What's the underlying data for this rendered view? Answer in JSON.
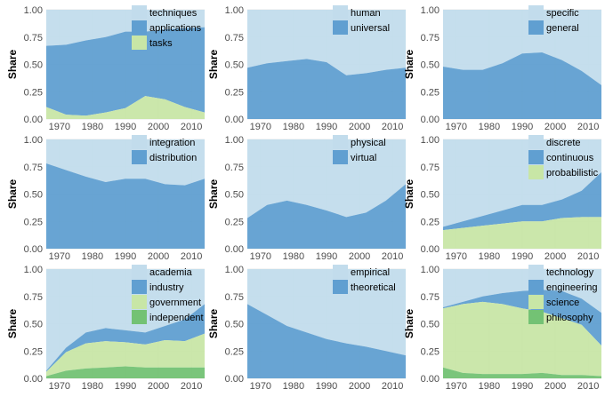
{
  "colors": {
    "light_blue": "#c2dcec",
    "mid_blue": "#609fd1",
    "light_green": "#c8e6a6",
    "green": "#73c274",
    "panel_bg": "#ffffff",
    "grid": "#e8e8e8",
    "axis_text": "#4d4d4d"
  },
  "chart_data": [
    {
      "type": "area",
      "stacked": true,
      "ylabel": "Share",
      "xlim": [
        1966,
        2014
      ],
      "ylim": [
        0,
        1
      ],
      "xticks": [
        "1970",
        "1980",
        "1990",
        "2000",
        "2010"
      ],
      "yticks": [
        "0.00",
        "0.25",
        "0.50",
        "0.75",
        "1.00"
      ],
      "grid": true,
      "legend_position": "top-right",
      "x": [
        1966,
        1972,
        1978,
        1984,
        1990,
        1996,
        2002,
        2008,
        2014
      ],
      "series": [
        {
          "name": "techniques",
          "color": "light_blue",
          "values": [
            0.33,
            0.32,
            0.28,
            0.25,
            0.2,
            0.2,
            0.18,
            0.17,
            0.16
          ]
        },
        {
          "name": "applications",
          "color": "mid_blue",
          "values": [
            0.56,
            0.64,
            0.69,
            0.69,
            0.7,
            0.59,
            0.64,
            0.72,
            0.78
          ]
        },
        {
          "name": "tasks",
          "color": "light_green",
          "values": [
            0.11,
            0.04,
            0.03,
            0.06,
            0.1,
            0.21,
            0.18,
            0.11,
            0.06
          ]
        }
      ]
    },
    {
      "type": "area",
      "stacked": true,
      "ylabel": "Share",
      "xlim": [
        1966,
        2014
      ],
      "ylim": [
        0,
        1
      ],
      "xticks": [
        "1970",
        "1980",
        "1990",
        "2000",
        "2010"
      ],
      "yticks": [
        "0.00",
        "0.25",
        "0.50",
        "0.75",
        "1.00"
      ],
      "grid": true,
      "legend_position": "top-right",
      "x": [
        1966,
        1972,
        1978,
        1984,
        1990,
        1996,
        2002,
        2008,
        2014
      ],
      "series": [
        {
          "name": "human",
          "color": "light_blue",
          "values": [
            0.53,
            0.49,
            0.47,
            0.45,
            0.48,
            0.6,
            0.58,
            0.55,
            0.53
          ]
        },
        {
          "name": "universal",
          "color": "mid_blue",
          "values": [
            0.47,
            0.51,
            0.53,
            0.55,
            0.52,
            0.4,
            0.42,
            0.45,
            0.47
          ]
        }
      ]
    },
    {
      "type": "area",
      "stacked": true,
      "ylabel": "Share",
      "xlim": [
        1966,
        2014
      ],
      "ylim": [
        0,
        1
      ],
      "xticks": [
        "1970",
        "1980",
        "1990",
        "2000",
        "2010"
      ],
      "yticks": [
        "0.00",
        "0.25",
        "0.50",
        "0.75",
        "1.00"
      ],
      "grid": true,
      "legend_position": "top-right",
      "x": [
        1966,
        1972,
        1978,
        1984,
        1990,
        1996,
        2002,
        2008,
        2014
      ],
      "series": [
        {
          "name": "specific",
          "color": "light_blue",
          "values": [
            0.52,
            0.55,
            0.55,
            0.49,
            0.4,
            0.39,
            0.46,
            0.56,
            0.69
          ]
        },
        {
          "name": "general",
          "color": "mid_blue",
          "values": [
            0.48,
            0.45,
            0.45,
            0.51,
            0.6,
            0.61,
            0.54,
            0.44,
            0.31
          ]
        }
      ]
    },
    {
      "type": "area",
      "stacked": true,
      "ylabel": "Share",
      "xlim": [
        1966,
        2014
      ],
      "ylim": [
        0,
        1
      ],
      "xticks": [
        "1970",
        "1980",
        "1990",
        "2000",
        "2010"
      ],
      "yticks": [
        "0.00",
        "0.25",
        "0.50",
        "0.75",
        "1.00"
      ],
      "grid": true,
      "legend_position": "top-right",
      "x": [
        1966,
        1972,
        1978,
        1984,
        1990,
        1996,
        2002,
        2008,
        2014
      ],
      "series": [
        {
          "name": "integration",
          "color": "light_blue",
          "values": [
            0.22,
            0.28,
            0.34,
            0.39,
            0.36,
            0.36,
            0.41,
            0.42,
            0.36
          ]
        },
        {
          "name": "distribution",
          "color": "mid_blue",
          "values": [
            0.78,
            0.72,
            0.66,
            0.61,
            0.64,
            0.64,
            0.59,
            0.58,
            0.64
          ]
        }
      ]
    },
    {
      "type": "area",
      "stacked": true,
      "ylabel": "Share",
      "xlim": [
        1966,
        2014
      ],
      "ylim": [
        0,
        1
      ],
      "xticks": [
        "1970",
        "1980",
        "1990",
        "2000",
        "2010"
      ],
      "yticks": [
        "0.00",
        "0.25",
        "0.50",
        "0.75",
        "1.00"
      ],
      "grid": true,
      "legend_position": "top-right",
      "x": [
        1966,
        1972,
        1978,
        1984,
        1990,
        1996,
        2002,
        2008,
        2014
      ],
      "series": [
        {
          "name": "physical",
          "color": "light_blue",
          "values": [
            0.72,
            0.6,
            0.56,
            0.6,
            0.65,
            0.71,
            0.67,
            0.56,
            0.41
          ]
        },
        {
          "name": "virtual",
          "color": "mid_blue",
          "values": [
            0.28,
            0.4,
            0.44,
            0.4,
            0.35,
            0.29,
            0.33,
            0.44,
            0.59
          ]
        }
      ]
    },
    {
      "type": "area",
      "stacked": true,
      "ylabel": "Share",
      "xlim": [
        1966,
        2014
      ],
      "ylim": [
        0,
        1
      ],
      "xticks": [
        "1970",
        "1980",
        "1990",
        "2000",
        "2010"
      ],
      "yticks": [
        "0.00",
        "0.25",
        "0.50",
        "0.75",
        "1.00"
      ],
      "grid": true,
      "legend_position": "top-right",
      "x": [
        1966,
        1972,
        1978,
        1984,
        1990,
        1996,
        2002,
        2008,
        2014
      ],
      "series": [
        {
          "name": "discrete",
          "color": "light_blue",
          "values": [
            0.8,
            0.75,
            0.7,
            0.65,
            0.6,
            0.6,
            0.55,
            0.47,
            0.3
          ]
        },
        {
          "name": "continuous",
          "color": "mid_blue",
          "values": [
            0.03,
            0.06,
            0.09,
            0.12,
            0.15,
            0.15,
            0.17,
            0.24,
            0.41
          ]
        },
        {
          "name": "probabilistic",
          "color": "light_green",
          "values": [
            0.17,
            0.19,
            0.21,
            0.23,
            0.25,
            0.25,
            0.28,
            0.29,
            0.29
          ]
        }
      ]
    },
    {
      "type": "area",
      "stacked": true,
      "ylabel": "Share",
      "xlim": [
        1966,
        2014
      ],
      "ylim": [
        0,
        1
      ],
      "xticks": [
        "1970",
        "1980",
        "1990",
        "2000",
        "2010"
      ],
      "yticks": [
        "0.00",
        "0.25",
        "0.50",
        "0.75",
        "1.00"
      ],
      "grid": true,
      "legend_position": "top-right",
      "x": [
        1966,
        1972,
        1978,
        1984,
        1990,
        1996,
        2002,
        2008,
        2014
      ],
      "series": [
        {
          "name": "academia",
          "color": "light_blue",
          "values": [
            0.93,
            0.72,
            0.58,
            0.54,
            0.56,
            0.58,
            0.52,
            0.46,
            0.32
          ]
        },
        {
          "name": "industry",
          "color": "mid_blue",
          "values": [
            0.01,
            0.04,
            0.1,
            0.12,
            0.11,
            0.11,
            0.13,
            0.2,
            0.27
          ]
        },
        {
          "name": "government",
          "color": "light_green",
          "values": [
            0.04,
            0.17,
            0.23,
            0.24,
            0.22,
            0.21,
            0.25,
            0.24,
            0.31
          ]
        },
        {
          "name": "independent",
          "color": "green",
          "values": [
            0.02,
            0.07,
            0.09,
            0.1,
            0.11,
            0.1,
            0.1,
            0.1,
            0.1
          ]
        }
      ]
    },
    {
      "type": "area",
      "stacked": true,
      "ylabel": "Share",
      "xlim": [
        1966,
        2014
      ],
      "ylim": [
        0,
        1
      ],
      "xticks": [
        "1970",
        "1980",
        "1990",
        "2000",
        "2010"
      ],
      "yticks": [
        "0.00",
        "0.25",
        "0.50",
        "0.75",
        "1.00"
      ],
      "grid": true,
      "legend_position": "top-right",
      "x": [
        1966,
        1972,
        1978,
        1984,
        1990,
        1996,
        2002,
        2008,
        2014
      ],
      "series": [
        {
          "name": "empirical",
          "color": "light_blue",
          "values": [
            0.32,
            0.42,
            0.52,
            0.58,
            0.64,
            0.68,
            0.71,
            0.75,
            0.79
          ]
        },
        {
          "name": "theoretical",
          "color": "mid_blue",
          "values": [
            0.68,
            0.58,
            0.48,
            0.42,
            0.36,
            0.32,
            0.29,
            0.25,
            0.21
          ]
        }
      ]
    },
    {
      "type": "area",
      "stacked": true,
      "ylabel": "Share",
      "xlim": [
        1966,
        2014
      ],
      "ylim": [
        0,
        1
      ],
      "xticks": [
        "1970",
        "1980",
        "1990",
        "2000",
        "2010"
      ],
      "yticks": [
        "0.00",
        "0.25",
        "0.50",
        "0.75",
        "1.00"
      ],
      "grid": true,
      "legend_position": "top-right",
      "x": [
        1966,
        1972,
        1978,
        1984,
        1990,
        1996,
        2002,
        2008,
        2014
      ],
      "series": [
        {
          "name": "technology",
          "color": "light_blue",
          "values": [
            0.35,
            0.3,
            0.25,
            0.22,
            0.2,
            0.19,
            0.2,
            0.27,
            0.4
          ]
        },
        {
          "name": "engineering",
          "color": "mid_blue",
          "values": [
            0.01,
            0.02,
            0.05,
            0.1,
            0.16,
            0.2,
            0.25,
            0.24,
            0.3
          ]
        },
        {
          "name": "science",
          "color": "light_green",
          "values": [
            0.54,
            0.63,
            0.66,
            0.64,
            0.6,
            0.56,
            0.52,
            0.46,
            0.28
          ]
        },
        {
          "name": "philosophy",
          "color": "green",
          "values": [
            0.1,
            0.05,
            0.04,
            0.04,
            0.04,
            0.05,
            0.03,
            0.03,
            0.02
          ]
        }
      ]
    }
  ]
}
